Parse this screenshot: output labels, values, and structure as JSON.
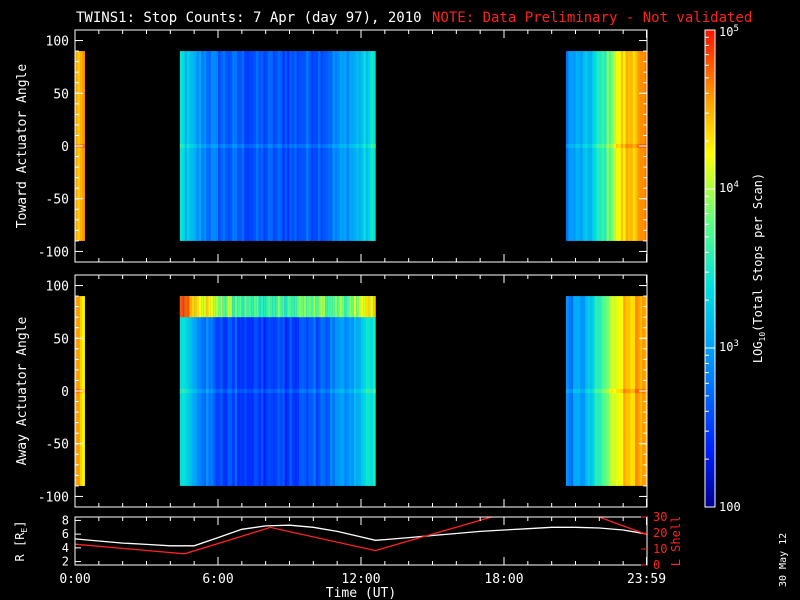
{
  "title": {
    "main": "TWINS1: Stop Counts:  7 Apr (day  97), 2010",
    "note": "NOTE: Data Preliminary - Not validated"
  },
  "panels": {
    "toward": {
      "ylabel": "Toward Actuator Angle"
    },
    "away": {
      "ylabel": "Away Actuator Angle"
    },
    "orbit": {
      "ylabel_left": "R [R",
      "ylabel_left_sub": "E",
      "ylabel_left_end": "]",
      "ylabel_right": "L Shell"
    }
  },
  "colorbar": {
    "label_prefix": "LOG",
    "label_sub": "10",
    "label_suffix": "(Total Stops per Scan)",
    "ticks": [
      {
        "text": "10",
        "sup": "5",
        "value": 5
      },
      {
        "text": "10",
        "sup": "4",
        "value": 4
      },
      {
        "text": "10",
        "sup": "3",
        "value": 3
      },
      {
        "text": "100",
        "sup": "",
        "value": 2
      }
    ]
  },
  "xaxis": {
    "label": "Time (UT)",
    "ticks": [
      {
        "label": "0:00",
        "hour": 0
      },
      {
        "label": "6:00",
        "hour": 6
      },
      {
        "label": "12:00",
        "hour": 12
      },
      {
        "label": "18:00",
        "hour": 18
      },
      {
        "label": "23:59",
        "hour": 23.98
      }
    ]
  },
  "date_stamp": "30 May 12",
  "chart_data": [
    {
      "type": "heatmap",
      "name": "toward",
      "ylabel": "Toward Actuator Angle",
      "xlabel": "Time (UT)",
      "xlim": [
        0,
        24
      ],
      "ylim": [
        -110,
        110
      ],
      "yticks": [
        {
          "label": "100",
          "value": 100
        },
        {
          "label": "50",
          "value": 50
        },
        {
          "label": "0",
          "value": 0
        },
        {
          "label": "-50",
          "value": -50
        },
        {
          "label": "-100",
          "value": -100
        }
      ],
      "angle_range": [
        -90,
        90
      ],
      "coverage_hours": [
        [
          0,
          0.4
        ],
        [
          4.4,
          12.6
        ],
        [
          20.6,
          24
        ]
      ],
      "log_counts_profile": [
        {
          "hour": 0.0,
          "log": 4.5
        },
        {
          "hour": 0.4,
          "log": 4.4
        },
        {
          "hour": 4.4,
          "log": 3.4
        },
        {
          "hour": 5.0,
          "log": 3.0
        },
        {
          "hour": 6.0,
          "log": 2.7
        },
        {
          "hour": 7.5,
          "log": 2.6
        },
        {
          "hour": 9.0,
          "log": 2.6
        },
        {
          "hour": 10.5,
          "log": 2.7
        },
        {
          "hour": 11.5,
          "log": 3.0
        },
        {
          "hour": 12.6,
          "log": 3.4
        },
        {
          "hour": 20.6,
          "log": 2.9
        },
        {
          "hour": 21.5,
          "log": 3.1
        },
        {
          "hour": 22.2,
          "log": 3.6
        },
        {
          "hour": 22.8,
          "log": 4.2
        },
        {
          "hour": 23.3,
          "log": 4.5
        },
        {
          "hour": 24.0,
          "log": 4.5
        }
      ]
    },
    {
      "type": "heatmap",
      "name": "away",
      "ylabel": "Away Actuator Angle",
      "xlabel": "Time (UT)",
      "xlim": [
        0,
        24
      ],
      "ylim": [
        -110,
        110
      ],
      "yticks": [
        {
          "label": "100",
          "value": 100
        },
        {
          "label": "50",
          "value": 50
        },
        {
          "label": "0",
          "value": 0
        },
        {
          "label": "-50",
          "value": -50
        },
        {
          "label": "-100",
          "value": -100
        }
      ],
      "angle_range": [
        -90,
        90
      ],
      "coverage_hours": [
        [
          0,
          0.4
        ],
        [
          4.4,
          12.6
        ],
        [
          20.6,
          24
        ]
      ],
      "high_count_band_angles": [
        70,
        90
      ],
      "log_counts_profile": [
        {
          "hour": 0.0,
          "log": 4.5
        },
        {
          "hour": 0.4,
          "log": 4.4
        },
        {
          "hour": 4.4,
          "log": 3.5
        },
        {
          "hour": 5.0,
          "log": 3.0
        },
        {
          "hour": 6.0,
          "log": 2.6
        },
        {
          "hour": 7.5,
          "log": 2.5
        },
        {
          "hour": 9.0,
          "log": 2.5
        },
        {
          "hour": 10.5,
          "log": 2.7
        },
        {
          "hour": 11.5,
          "log": 3.0
        },
        {
          "hour": 12.6,
          "log": 3.5
        },
        {
          "hour": 20.6,
          "log": 2.8
        },
        {
          "hour": 21.5,
          "log": 3.1
        },
        {
          "hour": 22.2,
          "log": 3.7
        },
        {
          "hour": 22.8,
          "log": 4.3
        },
        {
          "hour": 23.3,
          "log": 4.5
        },
        {
          "hour": 24.0,
          "log": 4.4
        }
      ]
    },
    {
      "type": "line",
      "name": "orbit",
      "xlabel": "Time (UT)",
      "xlim": [
        0,
        24
      ],
      "ylim_left": [
        1.5,
        8.5
      ],
      "ylim_right": [
        0,
        30
      ],
      "yticks_left": [
        {
          "label": "8",
          "value": 8
        },
        {
          "label": "6",
          "value": 6
        },
        {
          "label": "4",
          "value": 4
        },
        {
          "label": "2",
          "value": 2
        }
      ],
      "yticks_right": [
        {
          "label": "30",
          "value": 30
        },
        {
          "label": "20",
          "value": 20
        },
        {
          "label": "10",
          "value": 10
        },
        {
          "label": "0",
          "value": 0
        }
      ],
      "series": [
        {
          "name": "R [RE]",
          "axis": "left",
          "color": "#ffffff",
          "points": [
            [
              0,
              5.3
            ],
            [
              1,
              5.0
            ],
            [
              2,
              4.7
            ],
            [
              3,
              4.5
            ],
            [
              4,
              4.3
            ],
            [
              5,
              4.3
            ],
            [
              6,
              5.5
            ],
            [
              7,
              6.7
            ],
            [
              8,
              7.2
            ],
            [
              9,
              7.3
            ],
            [
              10,
              7.0
            ],
            [
              11,
              6.4
            ],
            [
              12,
              5.6
            ],
            [
              12.6,
              5.1
            ],
            [
              13,
              5.2
            ],
            [
              14,
              5.5
            ],
            [
              15,
              5.8
            ],
            [
              16,
              6.1
            ],
            [
              17,
              6.4
            ],
            [
              18,
              6.6
            ],
            [
              19,
              6.8
            ],
            [
              20,
              7.0
            ],
            [
              21,
              7.0
            ],
            [
              22,
              6.9
            ],
            [
              23,
              6.6
            ],
            [
              24,
              6.0
            ]
          ]
        },
        {
          "name": "L Shell",
          "axis": "right",
          "color": "#ff2020",
          "points": [
            [
              0,
              13
            ],
            [
              4.6,
              7
            ],
            [
              8.2,
              23.5
            ],
            [
              12.6,
              9
            ],
            [
              17.6,
              30.5
            ],
            [
              21.9,
              30.5
            ],
            [
              24,
              19
            ]
          ]
        }
      ]
    }
  ]
}
